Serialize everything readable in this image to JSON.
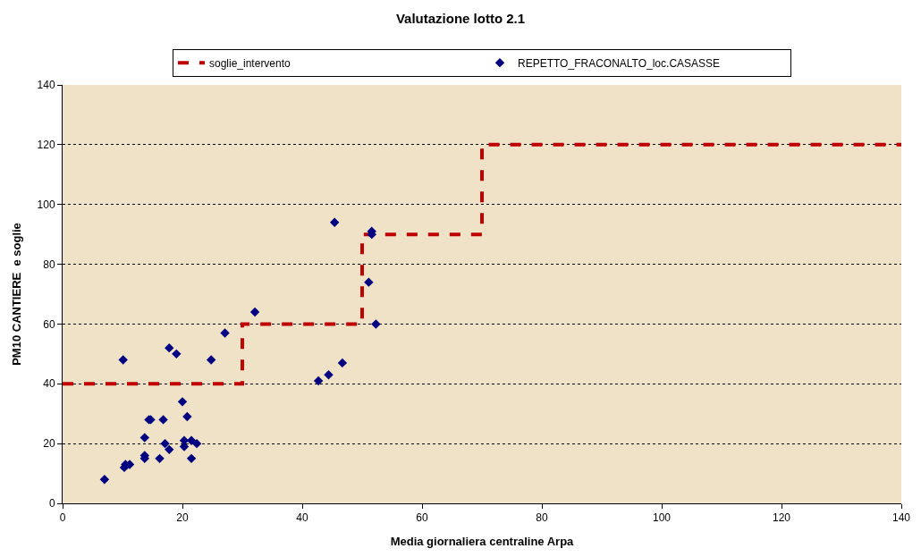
{
  "chart_data": {
    "type": "scatter",
    "title": "Valutazione lotto 2.1",
    "xlabel": "Media giornaliera centraline Arpa",
    "ylabel": "PM10 CANTIERE  e soglie",
    "xlim": [
      0,
      140
    ],
    "xticks": [
      0,
      20,
      40,
      60,
      80,
      100,
      120,
      140
    ],
    "ylim": [
      0,
      140
    ],
    "yticks": [
      0,
      20,
      40,
      60,
      80,
      100,
      120,
      140
    ],
    "grid": "y",
    "legend": "top",
    "marker": "diamond",
    "series": [
      {
        "name": "soglie_intervento",
        "type": "step",
        "color": "#c00000",
        "line_style": "dashed",
        "marker": "none",
        "x": [
          0,
          30,
          50,
          70,
          140
        ],
        "values": [
          40,
          60,
          90,
          120,
          120
        ]
      },
      {
        "name": "REPETTO_FRACONALTO_loc.CASASSE",
        "color": "#000080",
        "x": [
          7.0,
          10.1,
          10.3,
          10.5,
          11.2,
          13.7,
          13.7,
          13.7,
          14.4,
          14.7,
          16.2,
          16.8,
          17.1,
          17.8,
          17.8,
          19.0,
          20.0,
          20.8,
          20.3,
          20.3,
          21.5,
          21.5,
          22.4,
          24.8,
          27.1,
          32.1,
          45.4,
          51.6,
          51.6,
          51.1,
          52.3,
          46.7,
          44.4,
          42.7
        ],
        "values": [
          8,
          48,
          12,
          13,
          13,
          22,
          16,
          15,
          28,
          28,
          15,
          28,
          20,
          18,
          52,
          50,
          34,
          29,
          21,
          19,
          21,
          15,
          20,
          48,
          57,
          64,
          94,
          91,
          90,
          74,
          60,
          47,
          43,
          41
        ]
      }
    ]
  }
}
